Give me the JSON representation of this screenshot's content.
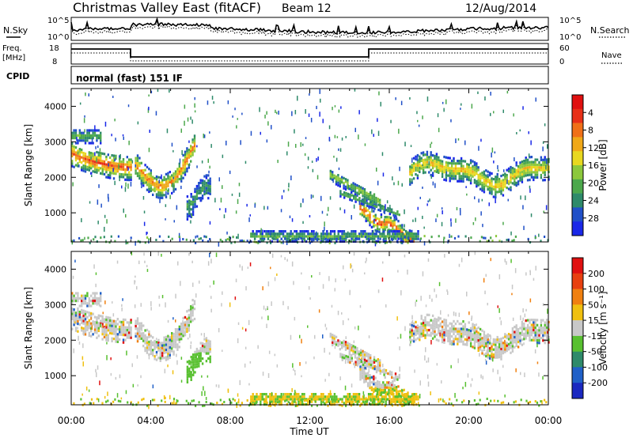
{
  "header": {
    "title": "Christmas Valley East (fitACF)",
    "beam": "Beam 12",
    "date": "12/Aug/2014"
  },
  "strip_labels": {
    "n_sky": "N.Sky",
    "n_search": "N.Search",
    "freq_line1": "Freq.",
    "freq_line2": "[MHz]",
    "nave": "Nave",
    "cpid": "CPID",
    "mode": "normal (fast) 151 IF",
    "noise_hi": "10^5",
    "noise_lo": "10^0",
    "freq_ticks": [
      "18",
      "8"
    ],
    "nave_ticks": [
      "60",
      "0"
    ]
  },
  "chart_data": [
    {
      "type": "heatmap",
      "title": "Power",
      "xlabel": "",
      "ylabel": "Slant Range [km]",
      "x_ticks": [
        "00:00",
        "04:00",
        "08:00",
        "12:00",
        "16:00",
        "20:00",
        "00:00"
      ],
      "y_ticks": [
        "1000",
        "2000",
        "3000",
        "4000"
      ],
      "ylim": [
        180,
        4500
      ],
      "xlim_hours": [
        0,
        24
      ],
      "colorbar": {
        "label": "Power [dB]",
        "ticks": [
          "4",
          "8",
          "12",
          "16",
          "20",
          "24",
          "28"
        ],
        "colors": [
          "#1a28e8",
          "#2050c8",
          "#2e8a6a",
          "#4ca84c",
          "#8cc83c",
          "#e8d820",
          "#f0a818",
          "#f07018",
          "#e83018",
          "#e01010"
        ]
      }
    },
    {
      "type": "heatmap",
      "title": "Velocity",
      "xlabel": "Time UT",
      "ylabel": "Slant Range [km]",
      "x_ticks": [
        "00:00",
        "04:00",
        "08:00",
        "12:00",
        "16:00",
        "20:00",
        "00:00"
      ],
      "y_ticks": [
        "1000",
        "2000",
        "3000",
        "4000"
      ],
      "ylim": [
        180,
        4500
      ],
      "xlim_hours": [
        0,
        24
      ],
      "colorbar": {
        "label": "Velocity [m s⁻¹]",
        "ticks": [
          "200",
          "100",
          "50",
          "15",
          "-15",
          "-50",
          "-100",
          "-200"
        ],
        "colors": [
          "#1a28c0",
          "#2060c8",
          "#2e8a6a",
          "#58c030",
          "#c8c8c8",
          "#f0c010",
          "#f08010",
          "#e84010",
          "#e01010"
        ]
      }
    }
  ]
}
